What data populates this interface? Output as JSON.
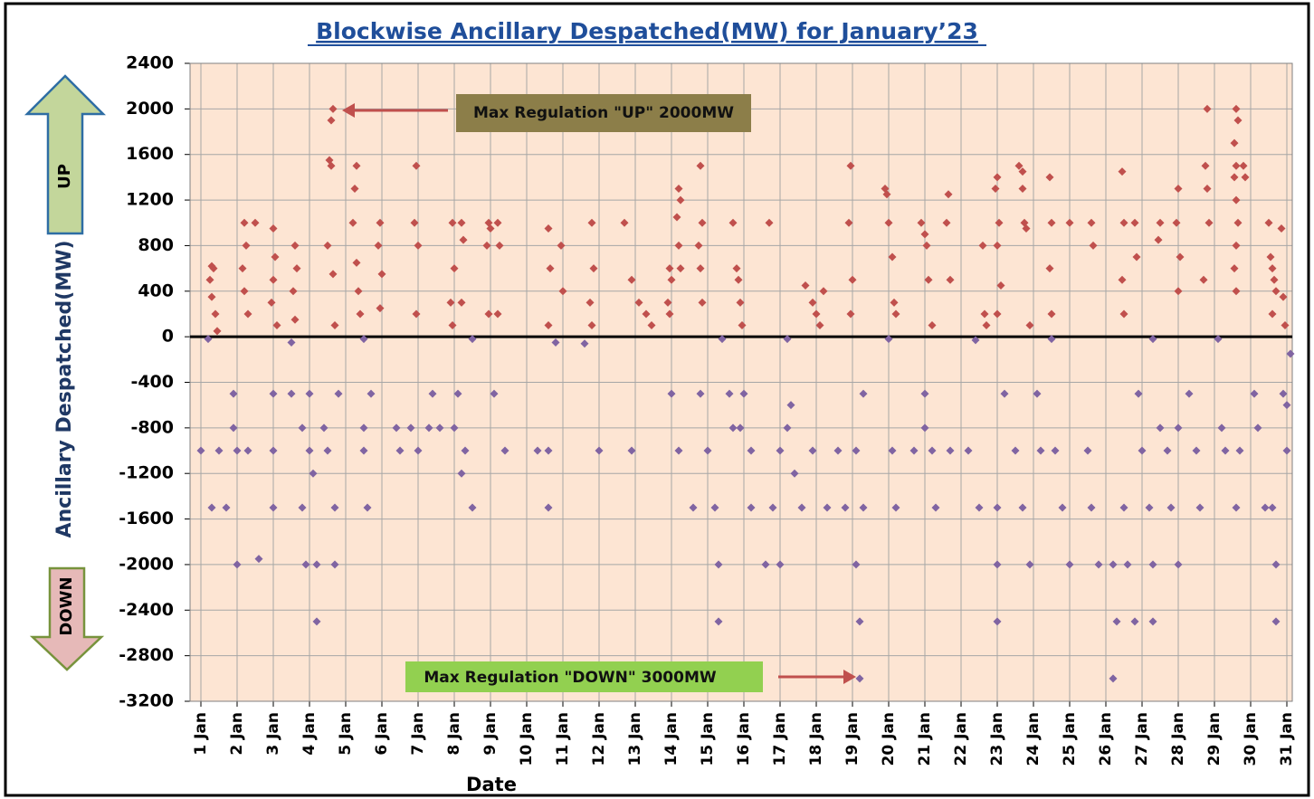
{
  "chart_data": {
    "type": "scatter",
    "title": "Blockwise Ancillary Despatched(MW) for  January’23",
    "y_label": "Ancillary Despatched(MW)",
    "x_label": "Date",
    "annotations": [
      "Max Regulation \"UP\" 2000MW",
      "Max Regulation \"DOWN\" 3000MW"
    ],
    "grid": true,
    "background": "#fde5d3",
    "ylim": [
      -3200,
      2400
    ],
    "yticks": [
      2400,
      2000,
      1600,
      1200,
      800,
      400,
      0,
      -400,
      -800,
      -1200,
      -1600,
      -2000,
      -2400,
      -2800,
      -3200
    ],
    "xlim": [
      0.7,
      31.15
    ],
    "xticks": [
      {
        "value": 1,
        "label": "1 Jan"
      },
      {
        "value": 2,
        "label": "2 Jan"
      },
      {
        "value": 3,
        "label": "3 Jan"
      },
      {
        "value": 4,
        "label": "4 Jan"
      },
      {
        "value": 5,
        "label": "5 Jan"
      },
      {
        "value": 6,
        "label": "6 Jan"
      },
      {
        "value": 7,
        "label": "7 Jan"
      },
      {
        "value": 8,
        "label": "8 Jan"
      },
      {
        "value": 9,
        "label": "9 Jan"
      },
      {
        "value": 10,
        "label": "10 Jan"
      },
      {
        "value": 11,
        "label": "11 Jan"
      },
      {
        "value": 12,
        "label": "12 Jan"
      },
      {
        "value": 13,
        "label": "13 Jan"
      },
      {
        "value": 14,
        "label": "14 Jan"
      },
      {
        "value": 15,
        "label": "15 Jan"
      },
      {
        "value": 16,
        "label": "16 Jan"
      },
      {
        "value": 17,
        "label": "17 Jan"
      },
      {
        "value": 18,
        "label": "18 Jan"
      },
      {
        "value": 19,
        "label": "19 Jan"
      },
      {
        "value": 20,
        "label": "20 Jan"
      },
      {
        "value": 21,
        "label": "21 Jan"
      },
      {
        "value": 22,
        "label": "22 Jan"
      },
      {
        "value": 23,
        "label": "23 Jan"
      },
      {
        "value": 24,
        "label": "24 Jan"
      },
      {
        "value": 25,
        "label": "25 Jan"
      },
      {
        "value": 26,
        "label": "26 Jan"
      },
      {
        "value": 27,
        "label": "27 Jan"
      },
      {
        "value": 28,
        "label": "28 Jan"
      },
      {
        "value": 29,
        "label": "29 Jan"
      },
      {
        "value": 30,
        "label": "30 Jan"
      },
      {
        "value": 31,
        "label": "31 Jan"
      }
    ],
    "series": [
      {
        "name": "UP",
        "color": "#c0504d",
        "x": [
          1.3,
          1.35,
          1.25,
          1.3,
          1.4,
          1.45,
          2.2,
          2.25,
          2.15,
          2.2,
          2.3,
          2.5,
          3.0,
          3.05,
          3.0,
          2.95,
          3.1,
          3.6,
          3.65,
          3.55,
          3.6,
          4.65,
          4.6,
          4.55,
          4.6,
          4.5,
          4.65,
          4.7,
          5.3,
          5.25,
          5.2,
          5.3,
          5.35,
          5.4,
          5.95,
          5.9,
          6.0,
          5.95,
          6.95,
          6.9,
          7.0,
          6.95,
          7.95,
          8.0,
          7.9,
          7.95,
          8.2,
          8.25,
          8.2,
          8.95,
          9.0,
          8.9,
          8.95,
          9.2,
          9.25,
          9.2,
          10.6,
          10.65,
          10.6,
          10.95,
          11.0,
          11.8,
          11.85,
          11.75,
          11.8,
          12.7,
          12.9,
          13.1,
          13.3,
          13.45,
          13.95,
          14.0,
          13.9,
          13.95,
          14.2,
          14.25,
          14.15,
          14.2,
          14.25,
          14.8,
          14.85,
          14.75,
          14.8,
          14.85,
          15.7,
          15.8,
          15.85,
          15.9,
          15.95,
          16.7,
          17.7,
          17.9,
          18.0,
          18.1,
          18.2,
          18.95,
          18.9,
          19.0,
          18.95,
          19.9,
          19.95,
          20.0,
          20.1,
          20.15,
          20.2,
          20.9,
          21.0,
          21.05,
          21.1,
          21.2,
          21.65,
          21.6,
          21.7,
          22.6,
          22.65,
          22.7,
          23.0,
          22.95,
          23.05,
          23.0,
          23.1,
          23.0,
          23.6,
          23.7,
          23.75,
          23.8,
          23.7,
          23.9,
          24.45,
          24.5,
          24.45,
          24.5,
          25.0,
          25.6,
          25.65,
          26.45,
          26.5,
          26.45,
          26.5,
          26.8,
          26.85,
          27.5,
          27.45,
          28.0,
          27.95,
          28.05,
          28.0,
          28.8,
          28.75,
          28.8,
          28.85,
          28.7,
          29.6,
          29.65,
          29.55,
          29.6,
          29.55,
          29.6,
          29.65,
          29.6,
          29.55,
          29.6,
          29.8,
          29.85,
          30.5,
          30.55,
          30.6,
          30.65,
          30.7,
          30.6,
          30.9,
          30.95,
          30.85
        ],
        "values": [
          620,
          600,
          500,
          350,
          200,
          50,
          1000,
          800,
          600,
          400,
          200,
          1000,
          950,
          700,
          500,
          300,
          100,
          800,
          600,
          400,
          150,
          2000,
          1900,
          1550,
          1500,
          800,
          550,
          100,
          1500,
          1300,
          1000,
          650,
          400,
          200,
          1000,
          800,
          550,
          250,
          1500,
          1000,
          800,
          200,
          1000,
          600,
          300,
          100,
          1000,
          850,
          300,
          1000,
          950,
          800,
          200,
          1000,
          800,
          200,
          950,
          600,
          100,
          800,
          400,
          1000,
          600,
          300,
          100,
          1000,
          500,
          300,
          200,
          100,
          600,
          500,
          300,
          200,
          1300,
          1200,
          1050,
          800,
          600,
          1500,
          1000,
          800,
          600,
          300,
          1000,
          600,
          500,
          300,
          100,
          1000,
          450,
          300,
          200,
          100,
          400,
          1500,
          1000,
          500,
          200,
          1300,
          1250,
          1000,
          700,
          300,
          200,
          1000,
          900,
          800,
          500,
          100,
          1250,
          1000,
          500,
          800,
          200,
          100,
          1400,
          1300,
          1000,
          800,
          450,
          200,
          1500,
          1450,
          1000,
          950,
          1300,
          100,
          1400,
          1000,
          600,
          200,
          1000,
          1000,
          800,
          1450,
          1000,
          500,
          200,
          1000,
          700,
          1000,
          850,
          1300,
          1000,
          700,
          400,
          2000,
          1500,
          1300,
          1000,
          500,
          2000,
          1900,
          1700,
          1500,
          1400,
          1200,
          1000,
          800,
          600,
          400,
          1500,
          1400,
          1000,
          700,
          600,
          500,
          400,
          200,
          350,
          100,
          950
        ]
      },
      {
        "name": "DOWN",
        "color": "#8064a2",
        "x": [
          1.0,
          1.3,
          1.5,
          1.7,
          1.9,
          1.9,
          2.0,
          2.3,
          2.0,
          2.6,
          3.0,
          3.0,
          3.0,
          3.5,
          3.8,
          4.0,
          3.8,
          3.9,
          4.0,
          4.1,
          4.2,
          4.2,
          4.4,
          4.5,
          4.7,
          4.7,
          4.8,
          5.5,
          5.5,
          5.6,
          5.7,
          6.4,
          6.5,
          6.8,
          7.0,
          7.3,
          7.4,
          7.6,
          8.0,
          8.1,
          8.2,
          8.3,
          8.5,
          9.1,
          9.4,
          10.3,
          10.6,
          10.6,
          12.0,
          12.9,
          14.0,
          14.2,
          14.6,
          14.8,
          15.0,
          15.2,
          15.3,
          15.3,
          15.6,
          15.7,
          15.9,
          16.2,
          16.0,
          16.2,
          16.6,
          16.8,
          17.0,
          17.0,
          17.2,
          17.4,
          17.3,
          17.6,
          17.9,
          18.3,
          18.6,
          18.8,
          19.1,
          19.1,
          19.2,
          19.2,
          19.3,
          19.3,
          20.1,
          20.2,
          20.7,
          21.0,
          21.0,
          21.2,
          21.3,
          21.7,
          22.2,
          22.5,
          23.0,
          23.0,
          23.0,
          23.2,
          23.5,
          23.7,
          23.9,
          24.1,
          24.2,
          24.6,
          24.8,
          25.0,
          25.5,
          25.6,
          25.8,
          26.2,
          26.3,
          26.2,
          26.5,
          26.6,
          26.8,
          26.9,
          27.0,
          27.2,
          27.3,
          27.3,
          27.5,
          27.7,
          27.8,
          28.0,
          28.0,
          28.3,
          28.5,
          28.6,
          29.2,
          29.3,
          29.6,
          29.7,
          30.1,
          30.2,
          30.4,
          30.6,
          30.7,
          30.7,
          30.9,
          31.0,
          31.0,
          31.1,
          1.2,
          3.5,
          5.5,
          8.5,
          10.8,
          11.6,
          15.4,
          17.2,
          20.0,
          22.4,
          24.5,
          27.3,
          29.1
        ],
        "values": [
          -1000,
          -1500,
          -1000,
          -1500,
          -500,
          -800,
          -1000,
          -1000,
          -2000,
          -1950,
          -1000,
          -500,
          -1500,
          -500,
          -800,
          -1000,
          -1500,
          -2000,
          -500,
          -1200,
          -2000,
          -2500,
          -800,
          -1000,
          -1500,
          -2000,
          -500,
          -800,
          -1000,
          -1500,
          -500,
          -800,
          -1000,
          -800,
          -1000,
          -800,
          -500,
          -800,
          -800,
          -500,
          -1200,
          -1000,
          -1500,
          -500,
          -1000,
          -1000,
          -1000,
          -1500,
          -1000,
          -1000,
          -500,
          -1000,
          -1500,
          -500,
          -1000,
          -1500,
          -2000,
          -2500,
          -500,
          -800,
          -800,
          -1000,
          -500,
          -1500,
          -2000,
          -1500,
          -2000,
          -1000,
          -800,
          -1200,
          -600,
          -1500,
          -1000,
          -1500,
          -1000,
          -1500,
          -1000,
          -2000,
          -2500,
          -3000,
          -1500,
          -500,
          -1000,
          -1500,
          -1000,
          -500,
          -800,
          -1000,
          -1500,
          -1000,
          -1000,
          -1500,
          -1500,
          -2000,
          -2500,
          -500,
          -1000,
          -1500,
          -2000,
          -500,
          -1000,
          -1000,
          -1500,
          -2000,
          -1000,
          -1500,
          -2000,
          -2000,
          -2500,
          -3000,
          -1500,
          -2000,
          -2500,
          -500,
          -1000,
          -1500,
          -2000,
          -2500,
          -800,
          -1000,
          -1500,
          -800,
          -2000,
          -500,
          -1000,
          -1500,
          -800,
          -1000,
          -1500,
          -1000,
          -500,
          -800,
          -1500,
          -1500,
          -2000,
          -2500,
          -500,
          -1000,
          -600,
          -150,
          -20,
          -50,
          -20,
          -20,
          -50,
          -60,
          -20,
          -20,
          -20,
          -30,
          -20,
          -20,
          -20
        ]
      }
    ]
  }
}
